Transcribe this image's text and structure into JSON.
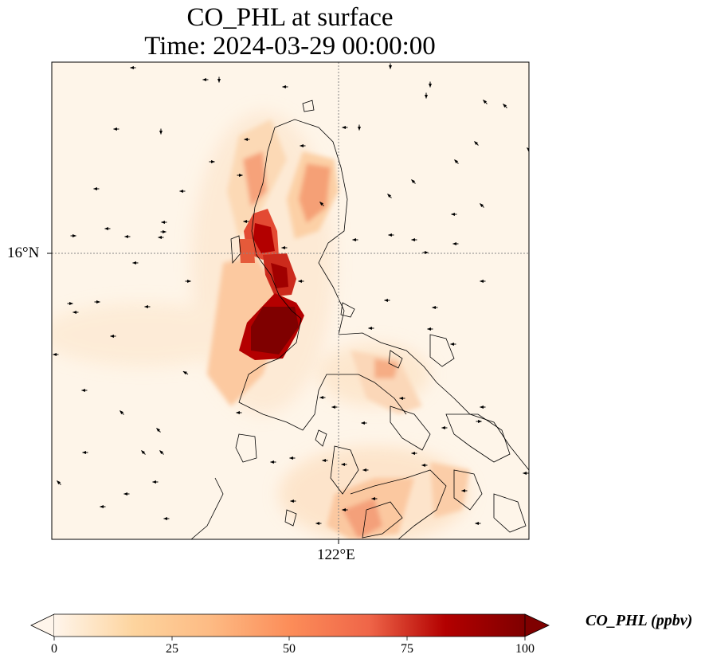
{
  "title": {
    "line1": "CO_PHL at surface",
    "line2": "Time: 2024-03-29 00:00:00"
  },
  "axes": {
    "lat_label": "16°N",
    "lon_label": "122°E"
  },
  "colorbar": {
    "label": "CO_PHL (ppbv)",
    "ticks": [
      "0",
      "25",
      "50",
      "75",
      "100"
    ],
    "min": 0,
    "max": 100,
    "extend": "both",
    "colormap": [
      "#fff5eb",
      "#fdd49e",
      "#fdae6b",
      "#f16913",
      "#d94801",
      "#a50f15",
      "#67000d"
    ]
  },
  "colors": {
    "background": "#fef5e9",
    "coastline": "#000000",
    "gridline": "#888888",
    "peak": "#7f0000"
  }
}
